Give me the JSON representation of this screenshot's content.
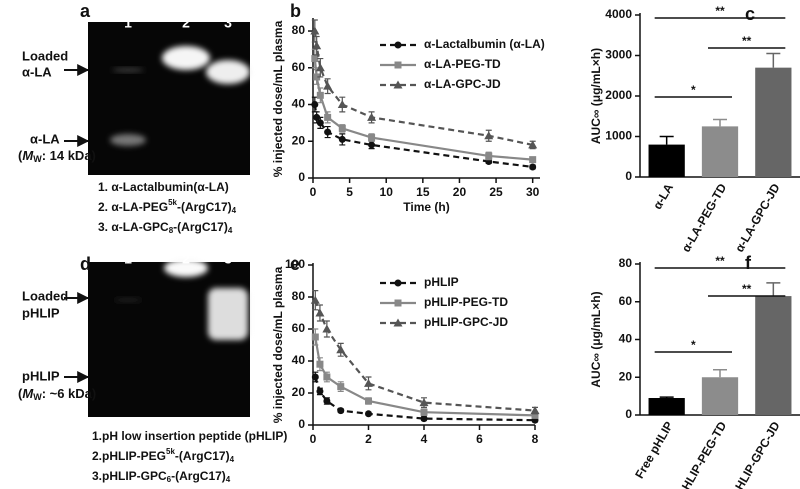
{
  "gels": [
    {
      "panel": "a",
      "lanes": [
        "1",
        "2",
        "3"
      ],
      "loaded": [
        "Loaded",
        "α-LA"
      ],
      "free": [
        "α-LA",
        "(",
        "M",
        "W",
        ": 14 kDa)"
      ],
      "caption": [
        [
          "1. α-Lactalbumin(α-LA)"
        ],
        [
          "2. α-LA-PEG",
          "5k",
          "-(ArgC17)",
          "4"
        ],
        [
          "3. α-LA-GPC",
          "8",
          "-(ArgC17)",
          "4"
        ]
      ]
    },
    {
      "panel": "d",
      "lanes": [
        "1",
        "2",
        "3"
      ],
      "loaded": [
        "Loaded",
        "pHLIP"
      ],
      "free": [
        "pHLIP",
        "(",
        "M",
        "W",
        ": ~6 kDa)"
      ],
      "caption": [
        [
          "1.pH low insertion peptide (pHLIP)"
        ],
        [
          "2.pHLIP-PEG",
          "5k",
          "-(ArgC17)",
          "4"
        ],
        [
          "3.pHLIP-GPC",
          "6",
          "-(ArgC17)",
          "4"
        ]
      ]
    }
  ],
  "chart_data": [
    {
      "type": "line",
      "panel": "b",
      "xlabel": "Time (h)",
      "ylabel": "% injected dose/mL plasma",
      "x": [
        0.25,
        0.5,
        1,
        2,
        4,
        8,
        24,
        30
      ],
      "xlim": [
        0,
        31
      ],
      "ylim": [
        0,
        86
      ],
      "xticks": [
        0,
        5,
        10,
        15,
        20,
        25,
        30
      ],
      "yticks": [
        0,
        20,
        40,
        60,
        80
      ],
      "series": [
        {
          "name": "α-Lactalbumin (α-LA)",
          "color": "#111111",
          "marker": "circle",
          "dash": true,
          "values": [
            40,
            33,
            30,
            25,
            21,
            18,
            9,
            6
          ],
          "errors": [
            4,
            3,
            3,
            3,
            3,
            2,
            1,
            1
          ]
        },
        {
          "name": "α-LA-PEG-TD",
          "color": "#888888",
          "marker": "square",
          "dash": false,
          "values": [
            65,
            55,
            45,
            33,
            27,
            22,
            12,
            10
          ],
          "errors": [
            5,
            4,
            4,
            3,
            2,
            2,
            2,
            1
          ]
        },
        {
          "name": "α-LA-GPC-JD",
          "color": "#555555",
          "marker": "triangle",
          "dash": true,
          "values": [
            80,
            72,
            60,
            50,
            40,
            33,
            23,
            18
          ],
          "errors": [
            6,
            5,
            5,
            4,
            4,
            3,
            3,
            2
          ]
        }
      ]
    },
    {
      "type": "bar",
      "panel": "c",
      "ylabel": "AUC∞ (μg/mL×h)",
      "categories": [
        "α-LA",
        "α-LA-PEG-TD",
        "α-LA-GPC-JD"
      ],
      "values": [
        800,
        1250,
        2700
      ],
      "errors": [
        200,
        170,
        350
      ],
      "colors": [
        "#000000",
        "#8c8c8c",
        "#666666"
      ],
      "ylim": [
        0,
        4000
      ],
      "yticks": [
        0,
        1000,
        2000,
        3000,
        4000
      ],
      "annotations": [
        "*",
        "**",
        "**"
      ]
    },
    {
      "type": "line",
      "panel": "e",
      "ylabel": "% injected dose/mL plasma",
      "x": [
        0.083,
        0.25,
        0.5,
        1,
        2,
        4,
        8
      ],
      "xlim": [
        0,
        8
      ],
      "ylim": [
        0,
        100
      ],
      "xticks": [
        0,
        2,
        4,
        6,
        8
      ],
      "yticks": [
        0,
        20,
        40,
        60,
        80,
        100
      ],
      "series": [
        {
          "name": "pHLIP",
          "color": "#111111",
          "marker": "circle",
          "dash": true,
          "values": [
            30,
            21,
            15,
            9,
            7,
            4,
            3
          ],
          "errors": [
            3,
            2,
            2,
            1,
            1,
            1,
            1
          ]
        },
        {
          "name": "pHLIP-PEG-TD",
          "color": "#888888",
          "marker": "square",
          "dash": false,
          "values": [
            55,
            38,
            30,
            24,
            15,
            8,
            6
          ],
          "errors": [
            5,
            4,
            3,
            3,
            2,
            2,
            1
          ]
        },
        {
          "name": "pHLIP-GPC-JD",
          "color": "#555555",
          "marker": "triangle",
          "dash": true,
          "values": [
            78,
            70,
            60,
            47,
            26,
            14,
            9
          ],
          "errors": [
            6,
            5,
            5,
            4,
            4,
            3,
            2
          ]
        }
      ]
    },
    {
      "type": "bar",
      "panel": "f",
      "ylabel": "AUC∞ (μg/mL×h)",
      "categories": [
        "Free pHLIP",
        "pHLIP-PEG-TD",
        "pHLIP-GPC-JD"
      ],
      "values": [
        9,
        20,
        63
      ],
      "errors": [
        0.5,
        4,
        7
      ],
      "colors": [
        "#000000",
        "#8c8c8c",
        "#666666"
      ],
      "ylim": [
        0,
        80
      ],
      "yticks": [
        0,
        20,
        40,
        60,
        80
      ],
      "annotations": [
        "*",
        "**",
        "**"
      ]
    }
  ]
}
